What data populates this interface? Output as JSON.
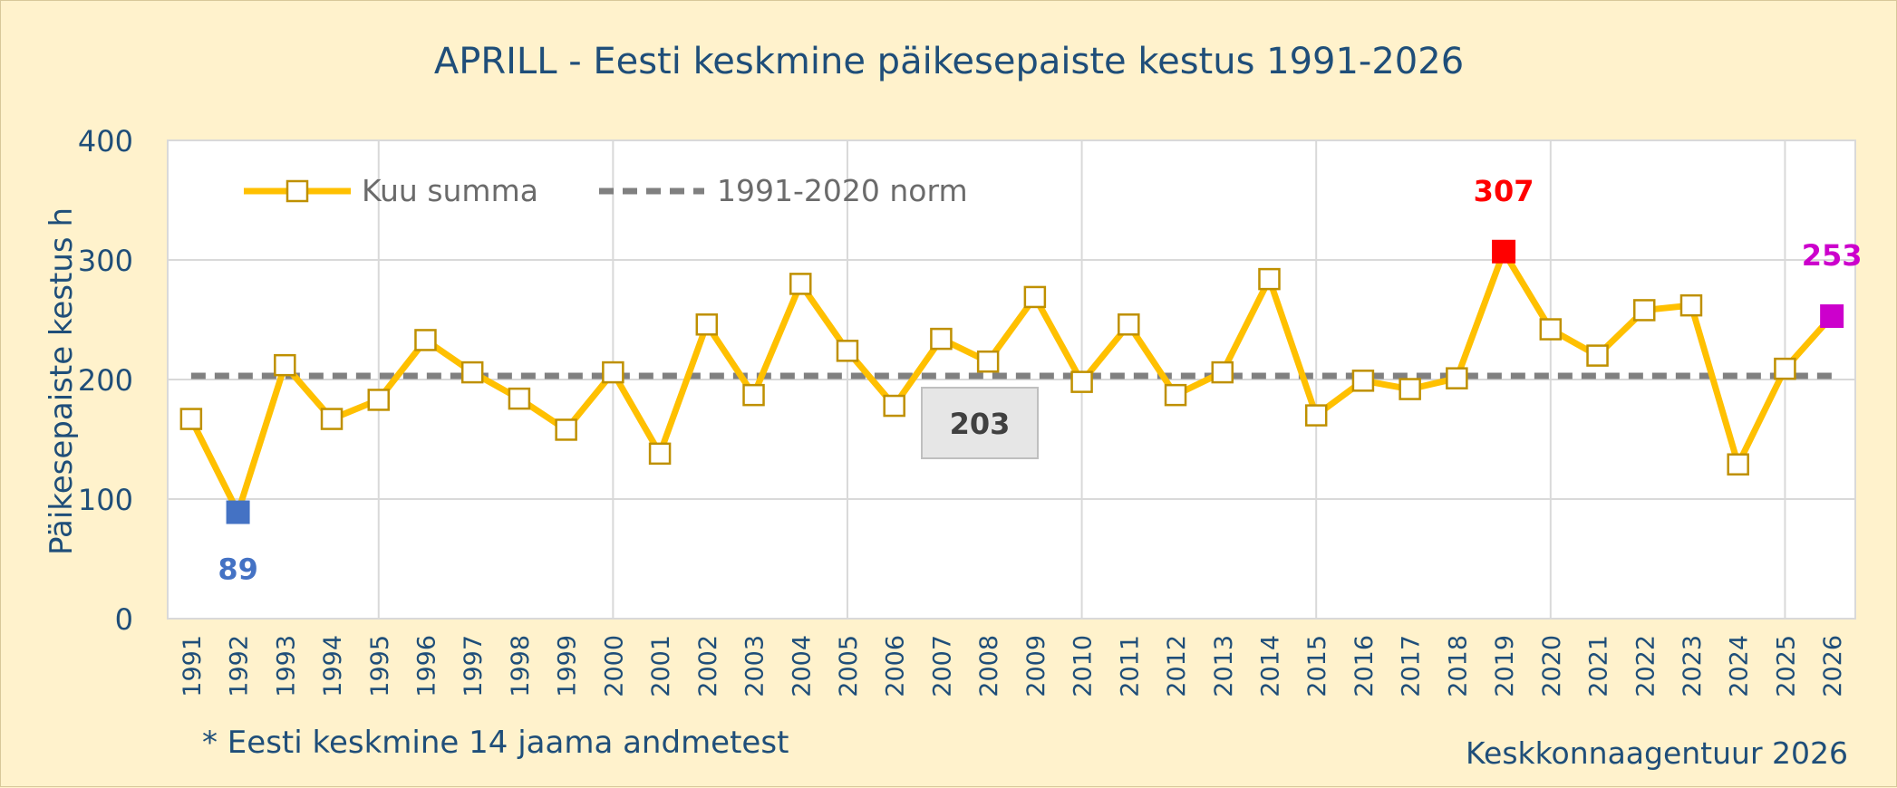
{
  "chart_data": {
    "type": "line",
    "title": "APRILL - Eesti keskmine päikesepaiste kestus 1991-2026",
    "ylabel": "Päikesepaiste kestus h",
    "xlabel": "",
    "ylim": [
      0,
      400
    ],
    "yticks": [
      "0",
      "100",
      "200",
      "300",
      "400"
    ],
    "grid": true,
    "legend_position": "top-left",
    "categories": [
      "1991",
      "1992",
      "1993",
      "1994",
      "1995",
      "1996",
      "1997",
      "1998",
      "1999",
      "2000",
      "2001",
      "2002",
      "2003",
      "2004",
      "2005",
      "2006",
      "2007",
      "2008",
      "2009",
      "2010",
      "2011",
      "2012",
      "2013",
      "2014",
      "2015",
      "2016",
      "2017",
      "2018",
      "2019",
      "2020",
      "2021",
      "2022",
      "2023",
      "2024",
      "2025",
      "2026"
    ],
    "series": [
      {
        "name": "Kuu summa",
        "color": "#ffc000",
        "marker_border": "#bf9000",
        "values": [
          167,
          89,
          212,
          167,
          183,
          233,
          206,
          184,
          158,
          206,
          138,
          246,
          187,
          280,
          224,
          178,
          234,
          215,
          269,
          198,
          246,
          187,
          206,
          284,
          170,
          199,
          192,
          201,
          307,
          242,
          220,
          258,
          262,
          129,
          209,
          253
        ]
      },
      {
        "name": "1991-2020 norm",
        "color": "#808080",
        "value": 203
      }
    ],
    "highlights": [
      {
        "index": 1,
        "label": "89",
        "color": "#4472c4"
      },
      {
        "index": 28,
        "label": "307",
        "color": "#ff0000"
      },
      {
        "index": 35,
        "label": "253",
        "color": "#cc00cc"
      }
    ],
    "norm_label": "203",
    "footnote": "* Eesti keskmine 14 jaama andmetest",
    "source": "Keskkonnaagentuur 2026"
  }
}
